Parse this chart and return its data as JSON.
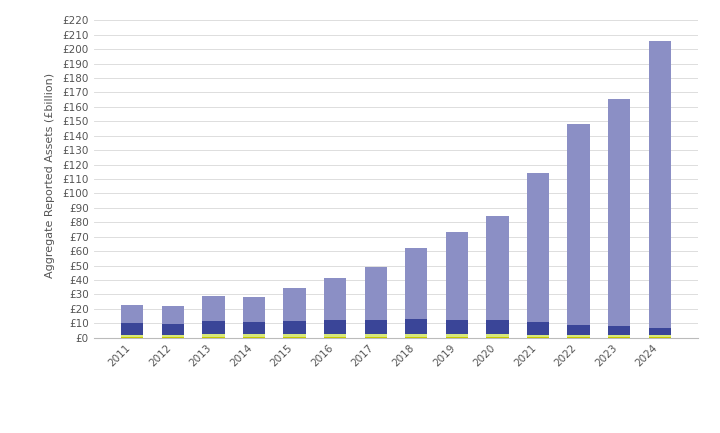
{
  "years": [
    "2011",
    "2012",
    "2013",
    "2014",
    "2015",
    "2016",
    "2017",
    "2018",
    "2019",
    "2020",
    "2021",
    "2022",
    "2023",
    "2024"
  ],
  "cat1_12to99": [
    0.3,
    0.3,
    0.3,
    0.3,
    0.3,
    0.3,
    0.3,
    0.3,
    0.3,
    0.3,
    0.3,
    0.3,
    0.3,
    0.3
  ],
  "cat2_100to999": [
    1.5,
    1.5,
    2.5,
    2.0,
    2.5,
    2.5,
    2.5,
    2.5,
    2.0,
    2.0,
    1.5,
    1.5,
    1.5,
    1.5
  ],
  "cat3_1000to4999": [
    8.5,
    8.0,
    9.0,
    8.5,
    9.0,
    9.5,
    9.5,
    10.0,
    10.0,
    10.0,
    9.0,
    7.0,
    6.0,
    5.0
  ],
  "cat4_5000plus": [
    12.5,
    12.5,
    17.0,
    17.5,
    23.0,
    29.0,
    37.0,
    49.5,
    61.0,
    72.0,
    103.0,
    139.0,
    157.5,
    199.0
  ],
  "color_12to99": "#c8c800",
  "color_100to999": "#d8e87a",
  "color_1000to4999": "#3a4598",
  "color_5000plus": "#8b8fc5",
  "ylabel": "Aggregate Reported Assets (£billion)",
  "ytick_labels": [
    "£0",
    "£10",
    "£20",
    "£30",
    "£40",
    "£50",
    "£60",
    "£70",
    "£80",
    "£90",
    "£100",
    "£110",
    "£120",
    "£130",
    "£140",
    "£150",
    "£160",
    "£170",
    "£180",
    "£190",
    "£200",
    "£210",
    "£220"
  ],
  "ytick_values": [
    0,
    10,
    20,
    30,
    40,
    50,
    60,
    70,
    80,
    90,
    100,
    110,
    120,
    130,
    140,
    150,
    160,
    170,
    180,
    190,
    200,
    210,
    220
  ],
  "ylim": [
    0,
    225
  ],
  "background_color": "#ffffff",
  "grid_color": "#d8d8d8",
  "bar_width": 0.55,
  "tick_fontsize": 7.5,
  "ylabel_fontsize": 8,
  "legend_fontsize": 8,
  "spine_color": "#bbbbbb"
}
